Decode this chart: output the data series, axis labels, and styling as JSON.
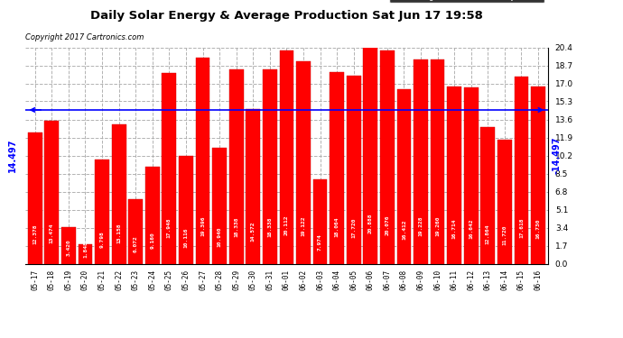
{
  "title": "Daily Solar Energy & Average Production Sat Jun 17 19:58",
  "copyright": "Copyright 2017 Cartronics.com",
  "average_value": 14.497,
  "bar_color": "#FF0000",
  "average_line_color": "#0000FF",
  "background_color": "#FFFFFF",
  "plot_bg_color": "#FFFFFF",
  "grid_color": "#AAAAAA",
  "categories": [
    "05-17",
    "05-18",
    "05-19",
    "05-20",
    "05-21",
    "05-22",
    "05-23",
    "05-24",
    "05-25",
    "05-26",
    "05-27",
    "05-28",
    "05-29",
    "05-30",
    "05-31",
    "06-01",
    "06-02",
    "06-03",
    "06-04",
    "06-05",
    "06-06",
    "06-07",
    "06-08",
    "06-09",
    "06-10",
    "06-11",
    "06-12",
    "06-13",
    "06-14",
    "06-15",
    "06-16"
  ],
  "values": [
    12.378,
    13.474,
    3.42,
    1.848,
    9.798,
    13.158,
    6.072,
    9.16,
    17.948,
    10.116,
    19.396,
    10.94,
    18.338,
    14.572,
    18.338,
    20.112,
    19.122,
    7.974,
    18.064,
    17.72,
    20.888,
    20.076,
    16.412,
    19.228,
    19.26,
    16.714,
    16.642,
    12.864,
    11.72,
    17.618,
    16.73
  ],
  "ylim": [
    0.0,
    20.4
  ],
  "yticks": [
    0.0,
    1.7,
    3.4,
    5.1,
    6.8,
    8.5,
    10.2,
    11.9,
    13.6,
    15.3,
    17.0,
    18.7,
    20.4
  ],
  "legend_avg_color": "#0000FF",
  "legend_daily_color": "#FF0000"
}
